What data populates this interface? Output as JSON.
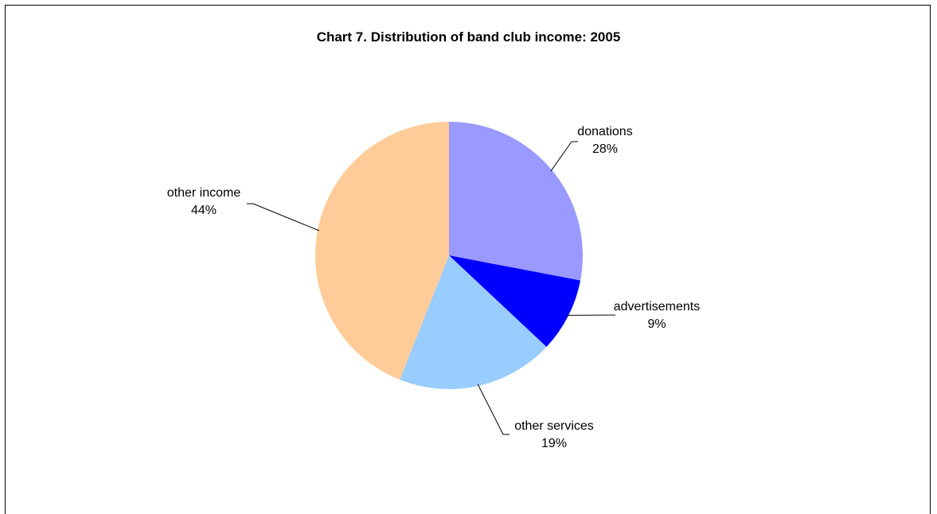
{
  "chart_data": {
    "type": "pie",
    "title": "Chart 7.  Distribution of band club income: 2005",
    "slices": [
      {
        "name": "donations",
        "value": 28,
        "label": "28%",
        "color": "#9999ff"
      },
      {
        "name": "advertisements",
        "value": 9,
        "label": "9%",
        "color": "#0000ff"
      },
      {
        "name": "other services",
        "value": 19,
        "label": "19%",
        "color": "#99ccff"
      },
      {
        "name": "other income",
        "value": 44,
        "label": "44%",
        "color": "#ffcc99"
      }
    ],
    "start_angle": "12 o'clock",
    "direction": "clockwise",
    "legend": "none",
    "data_labels": "outside with leader lines"
  }
}
